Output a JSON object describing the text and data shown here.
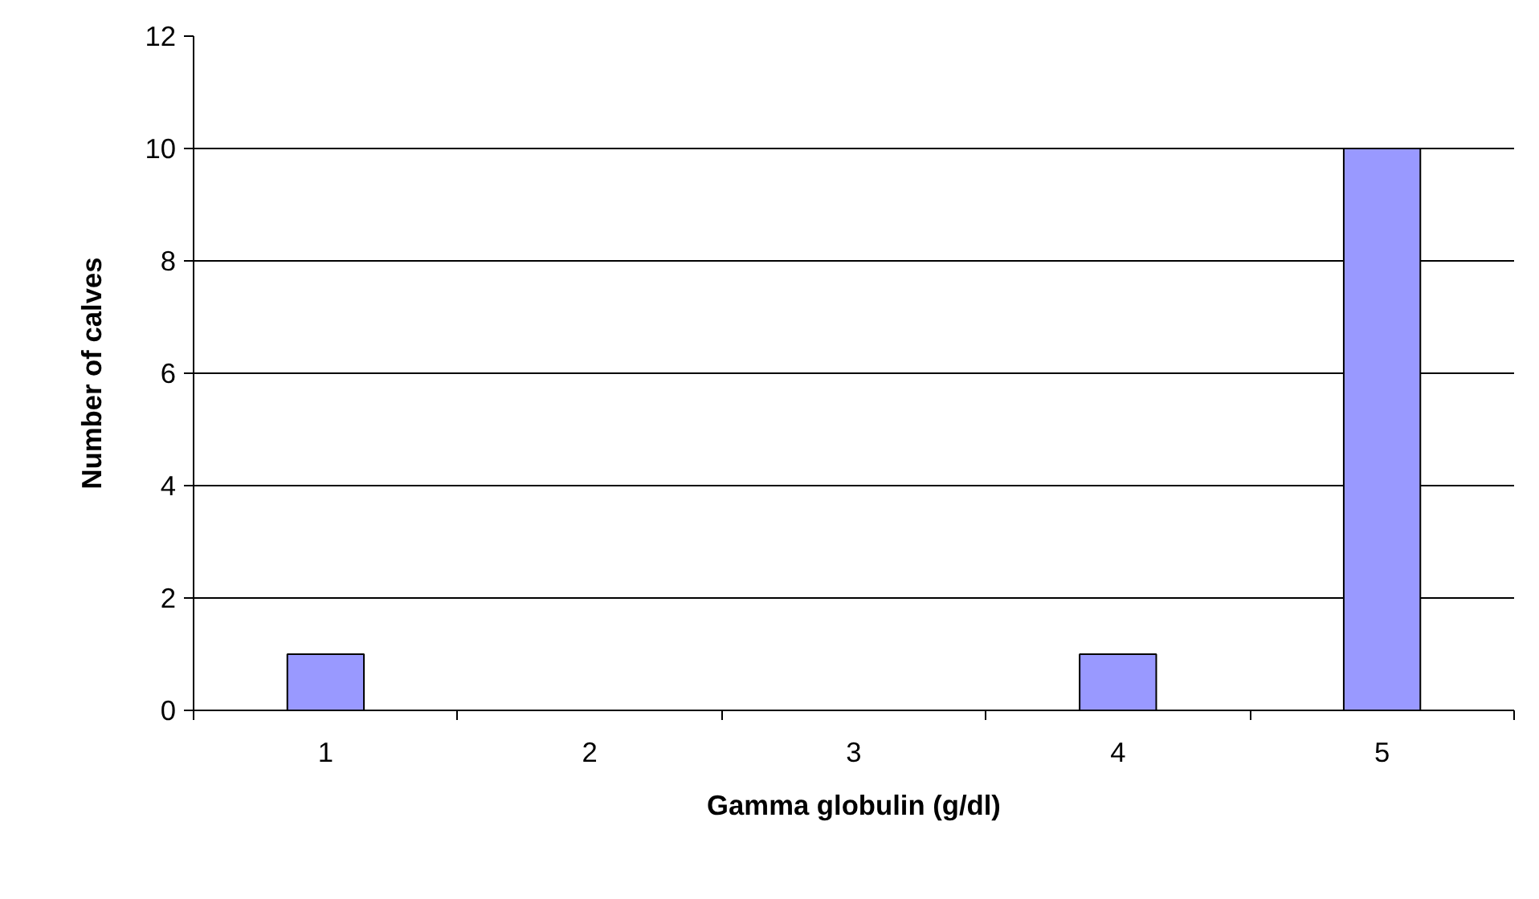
{
  "chart_data": {
    "type": "bar",
    "xlabel": "Gamma globulin (g/dl)",
    "ylabel": "Number of calves",
    "categories": [
      "1",
      "2",
      "3",
      "4",
      "5"
    ],
    "values": [
      1,
      0,
      0,
      1,
      10
    ],
    "color": "#9999ff",
    "ylim": [
      0,
      12
    ],
    "yticks": [
      0,
      2,
      4,
      6,
      8,
      10,
      12
    ],
    "grid": "y"
  }
}
